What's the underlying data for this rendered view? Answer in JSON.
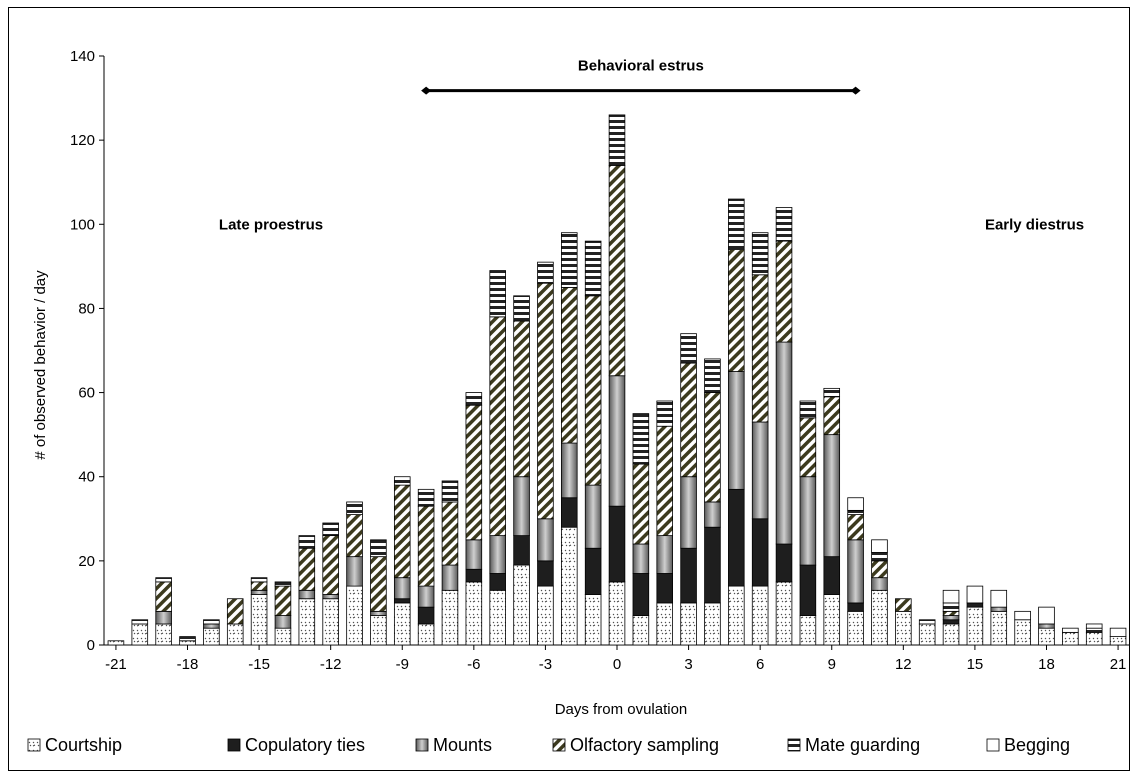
{
  "chart_data": {
    "type": "bar",
    "stacked": true,
    "xlabel": "Days from ovulation",
    "ylabel": "# of observed behavior / day",
    "ylim": [
      0,
      140
    ],
    "yticks": [
      0,
      20,
      40,
      60,
      80,
      100,
      120,
      140
    ],
    "xticks": [
      -21,
      -18,
      -15,
      -12,
      -9,
      -6,
      -3,
      0,
      3,
      6,
      9,
      12,
      15,
      18,
      21
    ],
    "x": [
      -21,
      -20,
      -19,
      -18,
      -17,
      -16,
      -15,
      -14,
      -13,
      -12,
      -11,
      -10,
      -9,
      -8,
      -7,
      -6,
      -5,
      -4,
      -3,
      -2,
      -1,
      0,
      1,
      2,
      3,
      4,
      5,
      6,
      7,
      8,
      9,
      10,
      11,
      12,
      13,
      14,
      15,
      16,
      17,
      18,
      19,
      20,
      21
    ],
    "series": [
      {
        "name": "Courtship",
        "values": [
          1,
          5,
          5,
          1,
          4,
          5,
          12,
          4,
          11,
          11,
          14,
          7,
          10,
          5,
          13,
          15,
          13,
          19,
          14,
          28,
          12,
          15,
          7,
          10,
          10,
          10,
          14,
          14,
          15,
          7,
          12,
          8,
          13,
          8,
          5,
          5,
          9,
          8,
          6,
          4,
          3,
          3,
          2
        ]
      },
      {
        "name": "Copulatory ties",
        "values": [
          0,
          0,
          0,
          0,
          0,
          0,
          0,
          0,
          0,
          0,
          0,
          0,
          1,
          4,
          0,
          3,
          4,
          7,
          6,
          7,
          11,
          18,
          10,
          7,
          13,
          18,
          23,
          16,
          9,
          12,
          9,
          2,
          0,
          0,
          0,
          1,
          1,
          0,
          0,
          0,
          0,
          0,
          0
        ]
      },
      {
        "name": "Mounts",
        "values": [
          0,
          0,
          3,
          0,
          1,
          0,
          1,
          3,
          2,
          1,
          7,
          1,
          5,
          5,
          6,
          7,
          9,
          14,
          10,
          13,
          15,
          31,
          7,
          9,
          17,
          6,
          28,
          23,
          48,
          21,
          29,
          15,
          3,
          0,
          0,
          1,
          0,
          1,
          0,
          1,
          0,
          0,
          0
        ]
      },
      {
        "name": "Olfactory sampling",
        "values": [
          0,
          0,
          7,
          0,
          0,
          6,
          2,
          7,
          10,
          14,
          10,
          13,
          22,
          19,
          15,
          32,
          52,
          37,
          56,
          37,
          45,
          50,
          19,
          26,
          27,
          26,
          29,
          35,
          24,
          14,
          9,
          6,
          4,
          3,
          0,
          1,
          0,
          0,
          0,
          0,
          0,
          0,
          0
        ]
      },
      {
        "name": "Mate guarding",
        "values": [
          0,
          1,
          1,
          1,
          1,
          0,
          1,
          1,
          3,
          3,
          3,
          4,
          2,
          4,
          5,
          3,
          11,
          6,
          5,
          13,
          13,
          12,
          12,
          6,
          7,
          8,
          12,
          10,
          8,
          4,
          2,
          1,
          2,
          0,
          1,
          2,
          0,
          0,
          0,
          0,
          0,
          1,
          0
        ]
      },
      {
        "name": "Begging",
        "values": [
          0,
          0,
          0,
          0,
          0,
          0,
          0,
          0,
          0,
          0,
          0,
          0,
          0,
          0,
          0,
          0,
          0,
          0,
          0,
          0,
          0,
          0,
          0,
          0,
          0,
          0,
          0,
          0,
          0,
          0,
          0,
          3,
          3,
          0,
          0,
          3,
          4,
          4,
          2,
          4,
          1,
          1,
          2
        ]
      }
    ],
    "annotations": [
      {
        "text": "Behavioral estrus",
        "type": "range",
        "from": -8,
        "to": 10,
        "y": 132
      },
      {
        "text": "Late proestrus",
        "x": -14.5,
        "y": 100
      },
      {
        "text": "Early diestrus",
        "x": 17.5,
        "y": 100
      }
    ],
    "grid": false,
    "legend": "bottom"
  }
}
